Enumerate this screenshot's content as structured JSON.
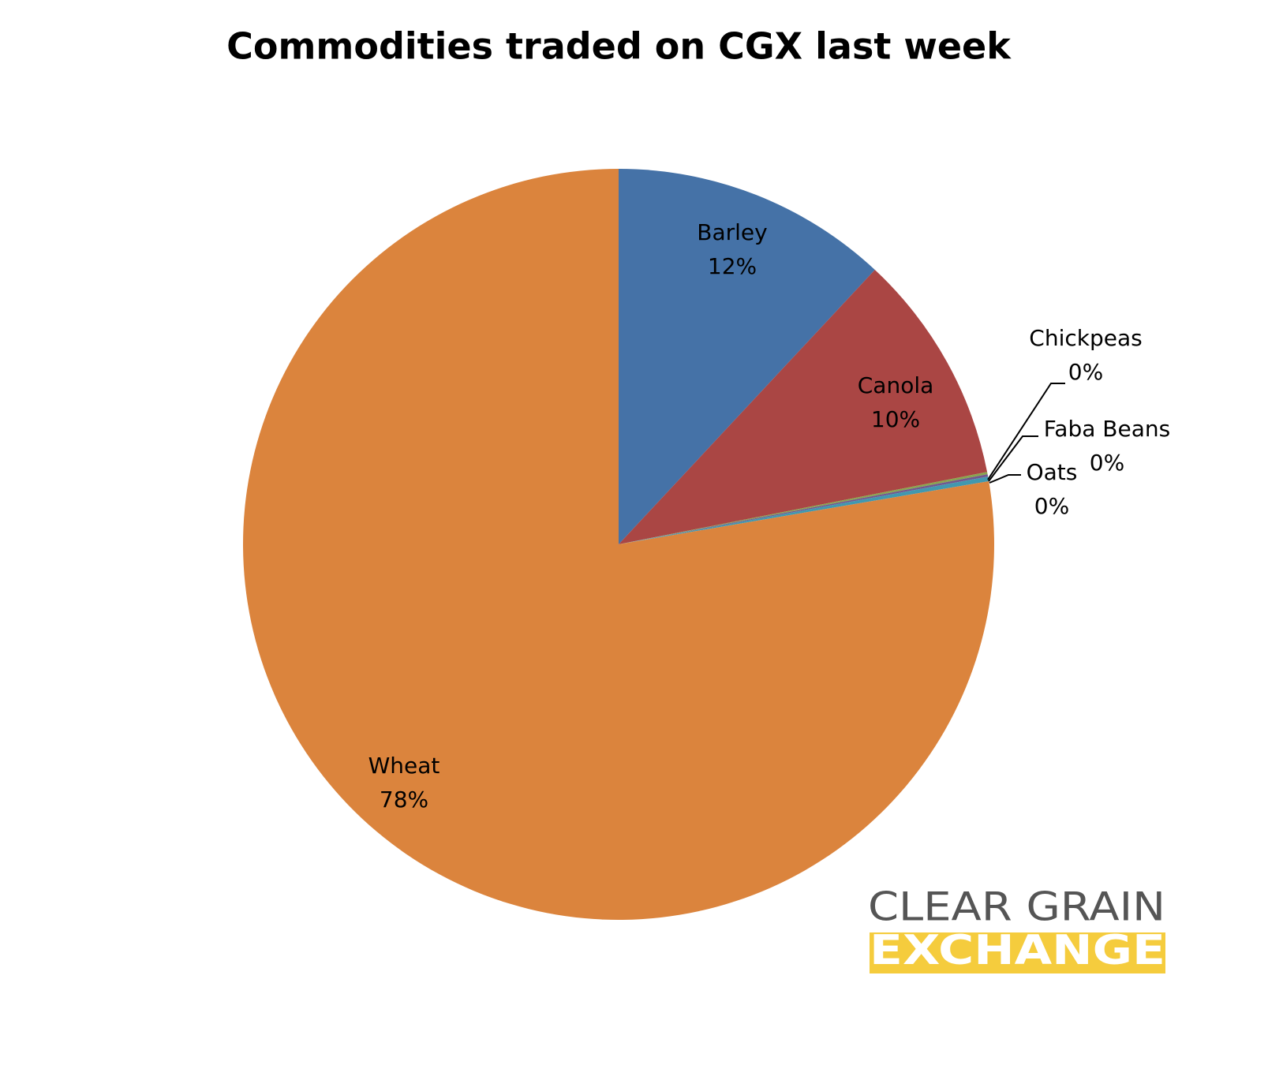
{
  "chart_data": {
    "type": "pie",
    "title": "Commodities traded on CGX last week",
    "categories": [
      "Barley",
      "Canola",
      "Chickpeas",
      "Faba Beans",
      "Oats",
      "Wheat"
    ],
    "values": [
      12,
      10,
      0.1,
      0.1,
      0.2,
      78
    ],
    "value_labels": [
      "12%",
      "10%",
      "0%",
      "0%",
      "0%",
      "78%"
    ],
    "colors": [
      "#4572a7",
      "#aa4644",
      "#89a54e",
      "#71588f",
      "#4198af",
      "#db843d"
    ]
  },
  "logo": {
    "line1": "CLEAR GRAIN",
    "line2": "EXCHANGE"
  }
}
